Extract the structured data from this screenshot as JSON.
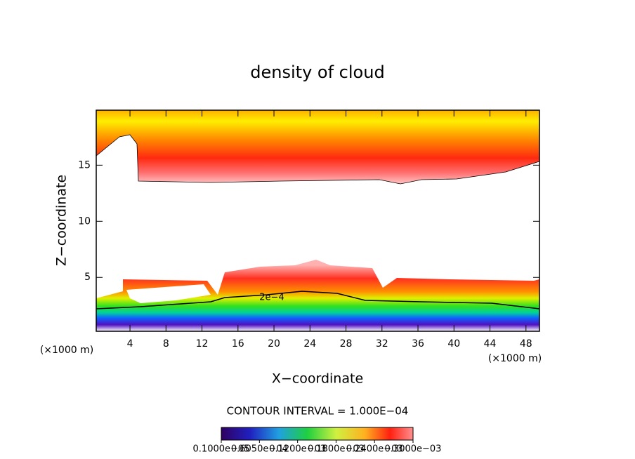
{
  "chart_data": {
    "type": "contour",
    "title": "density of cloud",
    "xlabel": "X−coordinate",
    "ylabel": "Z−coordinate",
    "x_unit": "(×1000 m)",
    "xlim": [
      0.25,
      49.5
    ],
    "ylim": [
      0.2,
      19.9
    ],
    "xticks": [
      4,
      8,
      12,
      16,
      20,
      24,
      28,
      32,
      36,
      40,
      44,
      48
    ],
    "yticks": [
      5,
      10,
      15
    ],
    "contour_interval": "CONTOUR INTERVAL = 1.000E−04",
    "contour_label": "2e−4",
    "colorbar_lim": [
      1e-06,
      0.0003
    ],
    "colorbar_ticks": [
      {
        "value": 1e-06,
        "label": "0.1000e−05"
      },
      {
        "value": 6.05e-05,
        "label": "0.6050e−04"
      },
      {
        "value": 0.00012,
        "label": "0.1200e−03"
      },
      {
        "value": 0.00018,
        "label": "0.1800e−03"
      },
      {
        "value": 0.00024,
        "label": "0.2400e−03"
      },
      {
        "value": 0.0003,
        "label": "0.3000e−03"
      }
    ]
  }
}
